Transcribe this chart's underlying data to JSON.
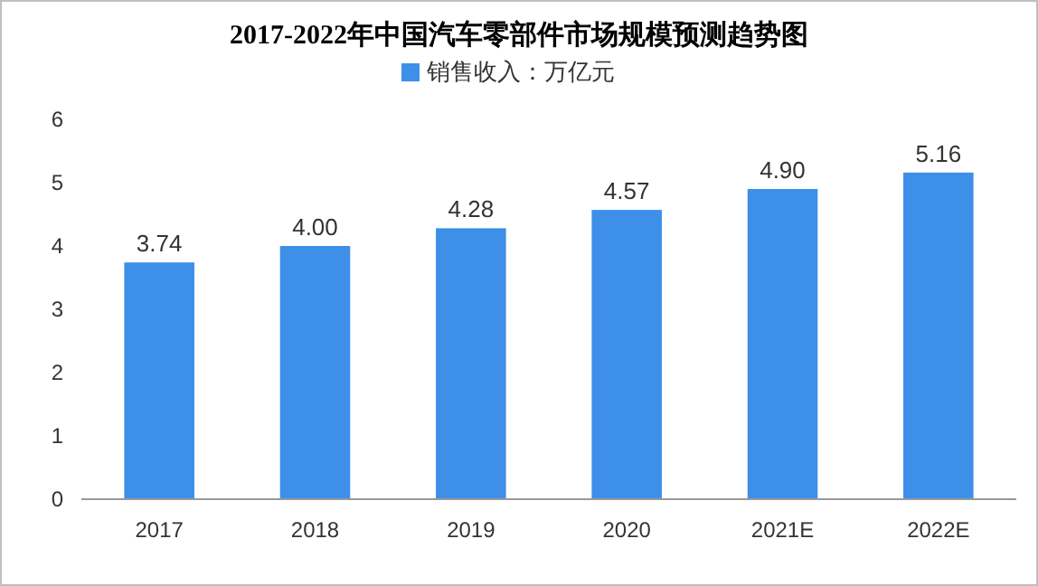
{
  "chart_data": {
    "type": "bar",
    "title": "2017-2022年中国汽车零部件市场规模预测趋势图",
    "categories": [
      "2017",
      "2018",
      "2019",
      "2020",
      "2021E",
      "2022E"
    ],
    "series": [
      {
        "name": "销售收入：万亿元",
        "color": "#3d8fe8",
        "values": [
          3.74,
          4.0,
          4.28,
          4.57,
          4.9,
          5.16
        ],
        "value_labels": [
          "3.74",
          "4.00",
          "4.28",
          "4.57",
          "4.90",
          "5.16"
        ]
      }
    ],
    "ylim": [
      0,
      6
    ],
    "yticks": [
      0,
      1,
      2,
      3,
      4,
      5,
      6
    ],
    "legend": "top",
    "grid": false
  }
}
